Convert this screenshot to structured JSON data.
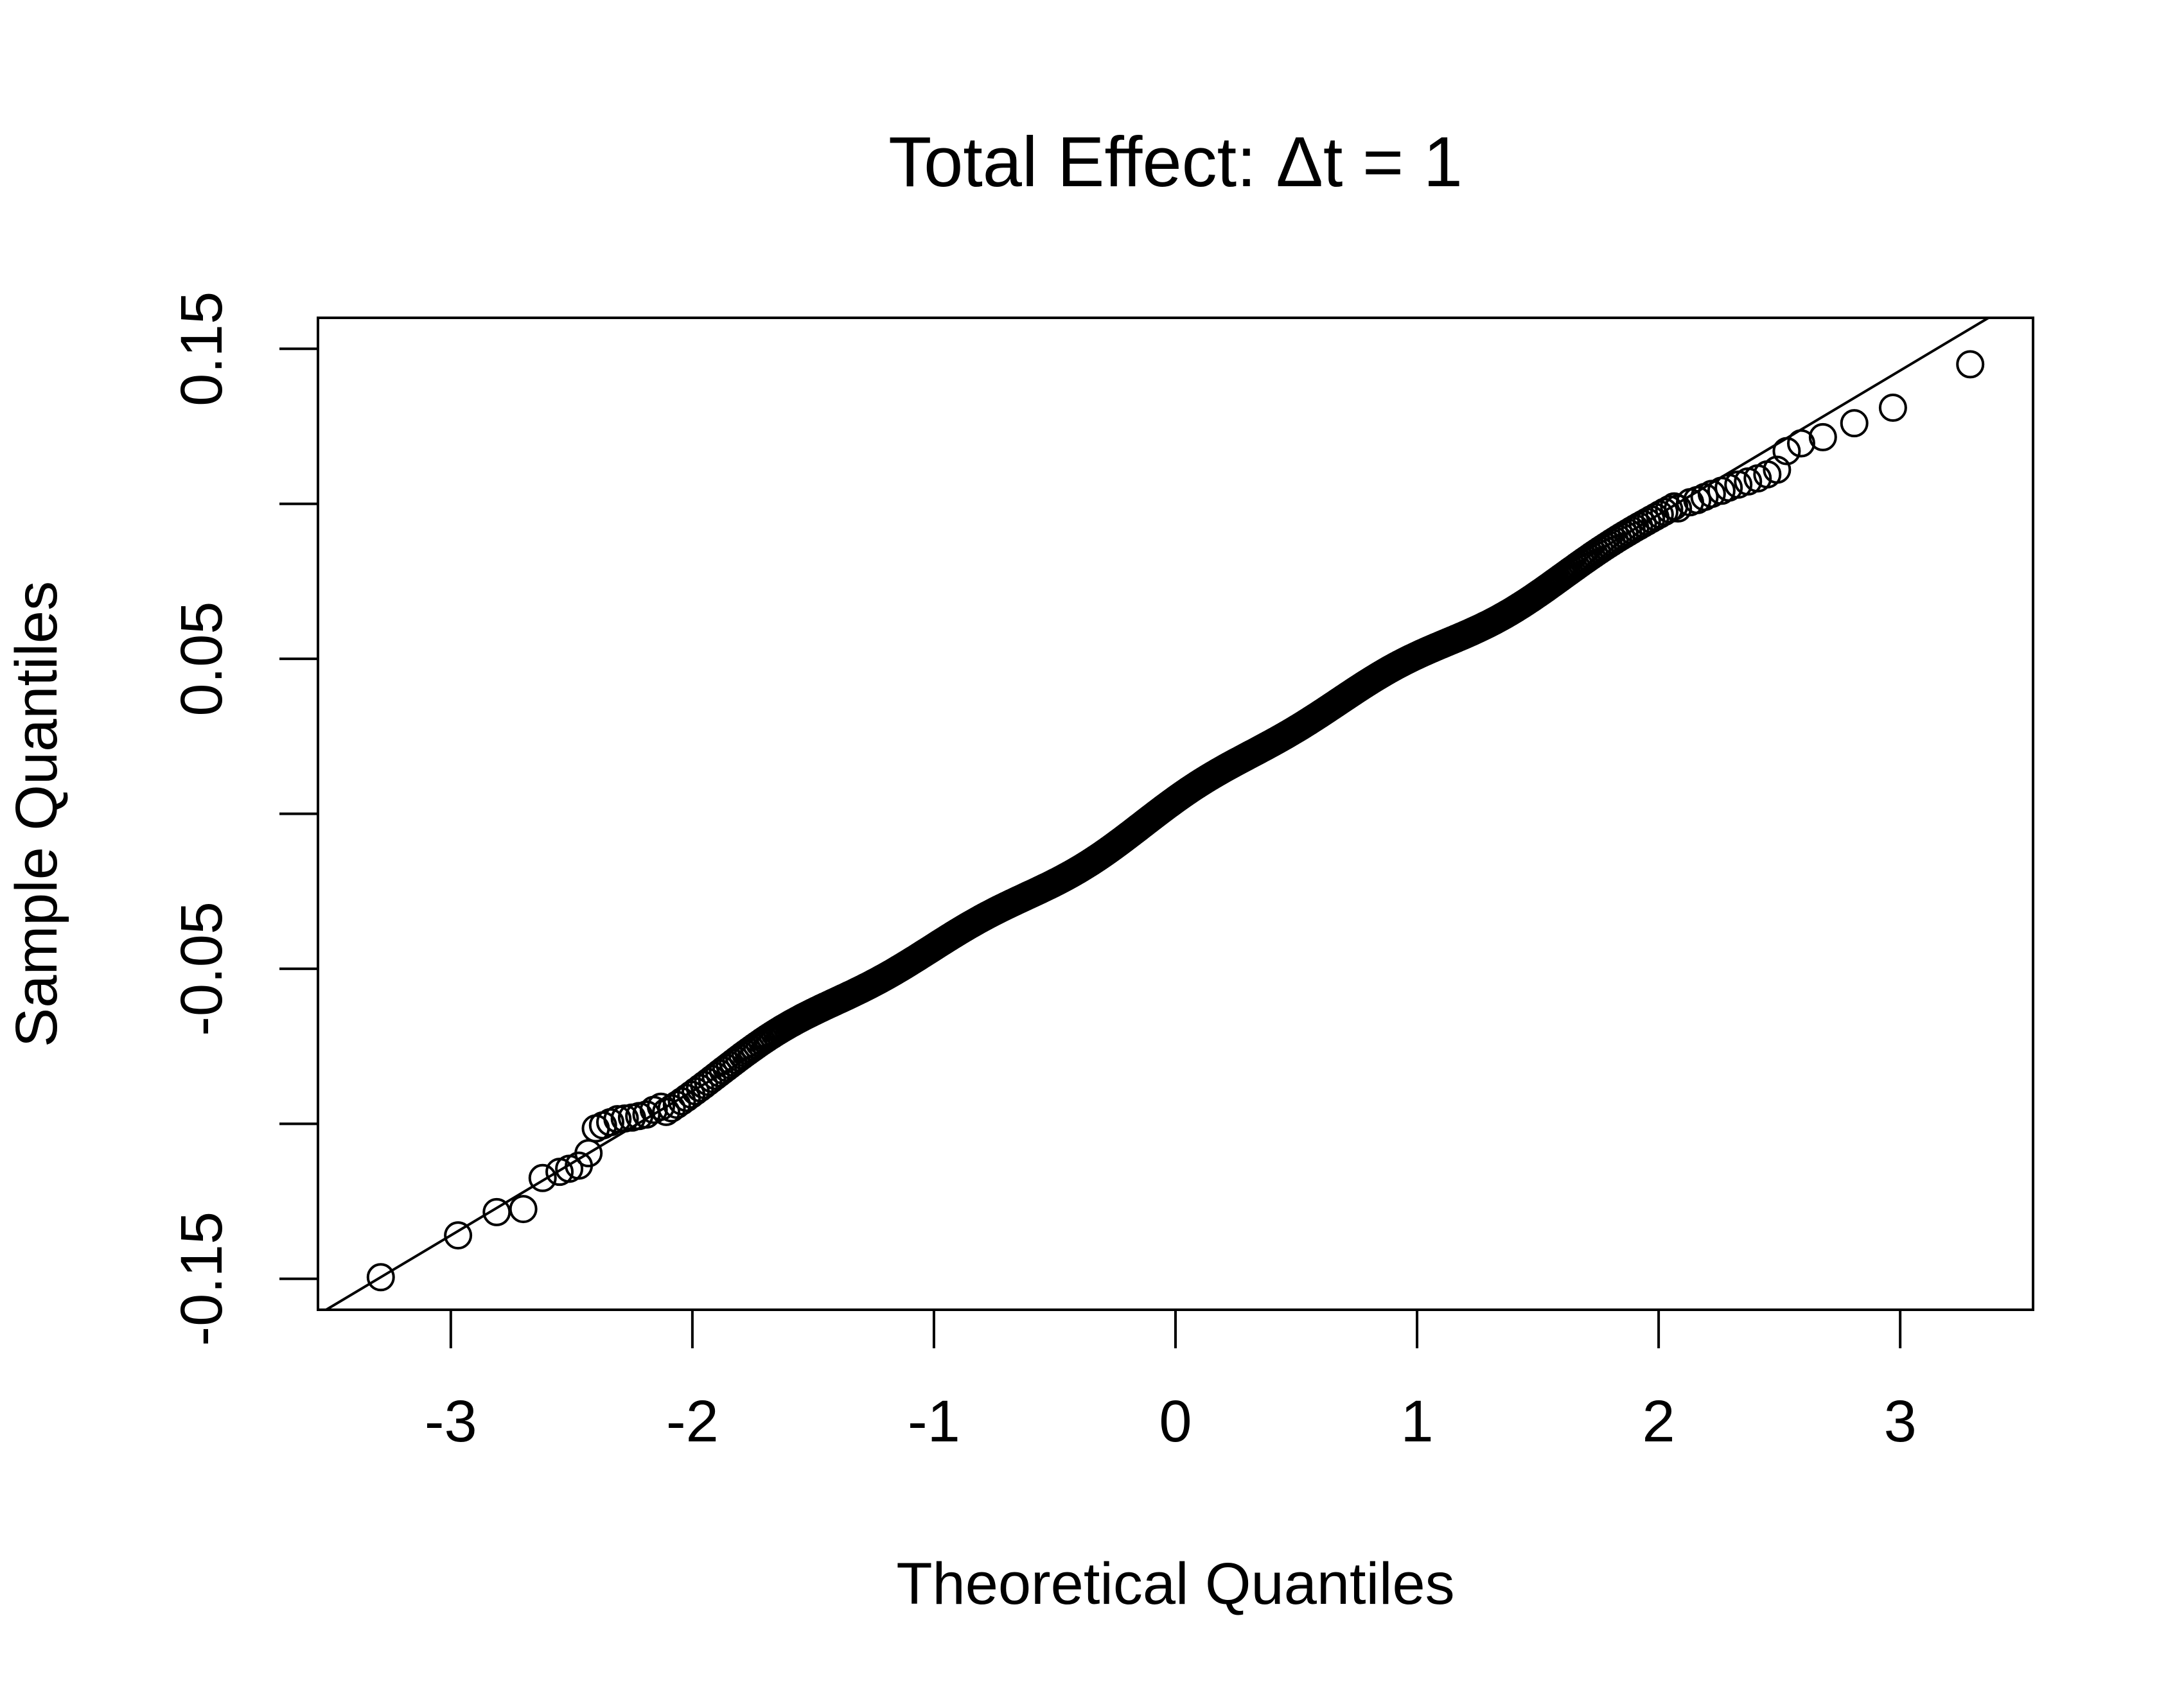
{
  "chart_data": {
    "type": "scatter",
    "title": "Total Effect:  Δt = 1",
    "xlabel": "Theoretical Quantiles",
    "ylabel": "Sample Quantiles",
    "xlim": [
      -3.55,
      3.55
    ],
    "ylim": [
      -0.16,
      0.16
    ],
    "xticks": [
      -3,
      -2,
      -1,
      0,
      1,
      2,
      3
    ],
    "xtick_labels": [
      "-3",
      "-2",
      "-1",
      "0",
      "1",
      "2",
      "3"
    ],
    "yticks": [
      -0.15,
      -0.1,
      -0.05,
      0,
      0.05,
      0.1,
      0.15
    ],
    "ytick_labels": [
      "-0.15",
      "",
      "-0.05",
      "",
      "0.05",
      "",
      "0.15"
    ],
    "reference_line": {
      "slope": 0.0465,
      "intercept": 0.0035
    },
    "n_points": 1000,
    "tail_points": [
      [
        -3.29,
        -0.1495
      ],
      [
        -2.97,
        -0.136
      ],
      [
        -2.81,
        -0.1285
      ],
      [
        -2.7,
        -0.1275
      ],
      [
        -2.62,
        -0.1175
      ],
      [
        -2.55,
        -0.1155
      ],
      [
        -2.51,
        -0.1145
      ],
      [
        -2.47,
        -0.1135
      ],
      [
        -2.43,
        -0.1095
      ],
      [
        -2.4,
        -0.1015
      ],
      [
        -2.37,
        -0.1005
      ],
      [
        -2.34,
        -0.0995
      ],
      [
        -2.31,
        -0.0985
      ],
      [
        -2.28,
        -0.0983
      ],
      [
        -2.25,
        -0.098
      ],
      [
        -2.22,
        -0.0975
      ],
      [
        -2.19,
        -0.097
      ],
      [
        -2.16,
        -0.0955
      ],
      [
        -2.13,
        -0.0945
      ],
      [
        2.08,
        0.0985
      ],
      [
        2.13,
        0.1005
      ],
      [
        2.16,
        0.1012
      ],
      [
        2.19,
        0.1022
      ],
      [
        2.22,
        0.1032
      ],
      [
        2.26,
        0.1042
      ],
      [
        2.29,
        0.1052
      ],
      [
        2.33,
        0.1062
      ],
      [
        2.37,
        0.1072
      ],
      [
        2.41,
        0.1082
      ],
      [
        2.45,
        0.1095
      ],
      [
        2.49,
        0.111
      ],
      [
        2.53,
        0.117
      ],
      [
        2.59,
        0.1195
      ],
      [
        2.68,
        0.1215
      ],
      [
        2.81,
        0.126
      ],
      [
        2.97,
        0.131
      ],
      [
        3.29,
        0.145
      ]
    ]
  }
}
